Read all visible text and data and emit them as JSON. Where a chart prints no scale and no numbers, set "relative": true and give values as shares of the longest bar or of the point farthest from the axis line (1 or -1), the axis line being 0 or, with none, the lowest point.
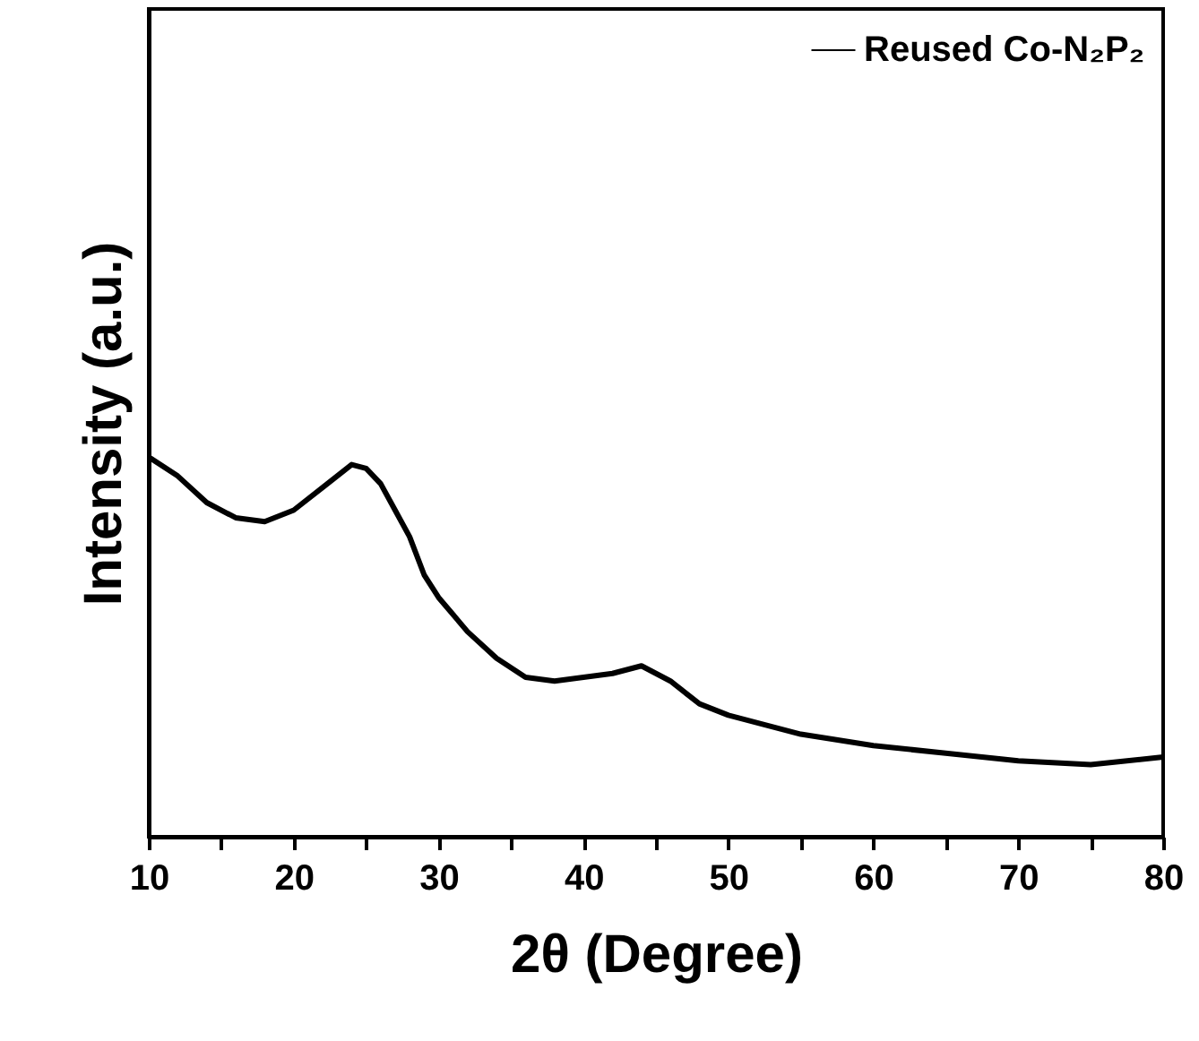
{
  "chart_data": {
    "type": "line",
    "relative": true,
    "xlabel": "2θ (Degree)",
    "ylabel": "Intensity (a.u.)",
    "x": [
      10,
      12,
      14,
      16,
      18,
      20,
      22,
      24,
      25,
      26,
      27,
      28,
      29,
      30,
      32,
      34,
      36,
      38,
      40,
      42,
      44,
      46,
      48,
      50,
      55,
      60,
      65,
      70,
      75,
      80
    ],
    "series": [
      {
        "name": "Reused Co-N₂P₂",
        "color": "#000000",
        "values": [
          1.0,
          0.95,
          0.88,
          0.84,
          0.83,
          0.86,
          0.92,
          0.98,
          0.97,
          0.93,
          0.86,
          0.79,
          0.69,
          0.63,
          0.54,
          0.47,
          0.42,
          0.41,
          0.42,
          0.43,
          0.45,
          0.41,
          0.35,
          0.32,
          0.27,
          0.24,
          0.22,
          0.2,
          0.19,
          0.21
        ]
      }
    ],
    "xlim": [
      10,
      80
    ],
    "xticks": [
      10,
      {
        "value": 15,
        "label": null
      },
      20,
      {
        "value": 25,
        "label": null
      },
      30,
      {
        "value": 35,
        "label": null
      },
      40,
      {
        "value": 45,
        "label": null
      },
      50,
      {
        "value": 55,
        "label": null
      },
      60,
      {
        "value": 65,
        "label": null
      },
      70,
      {
        "value": 75,
        "label": null
      },
      80
    ],
    "grid": false,
    "legend": "top right",
    "marker": "none",
    "line_style": "solid"
  }
}
